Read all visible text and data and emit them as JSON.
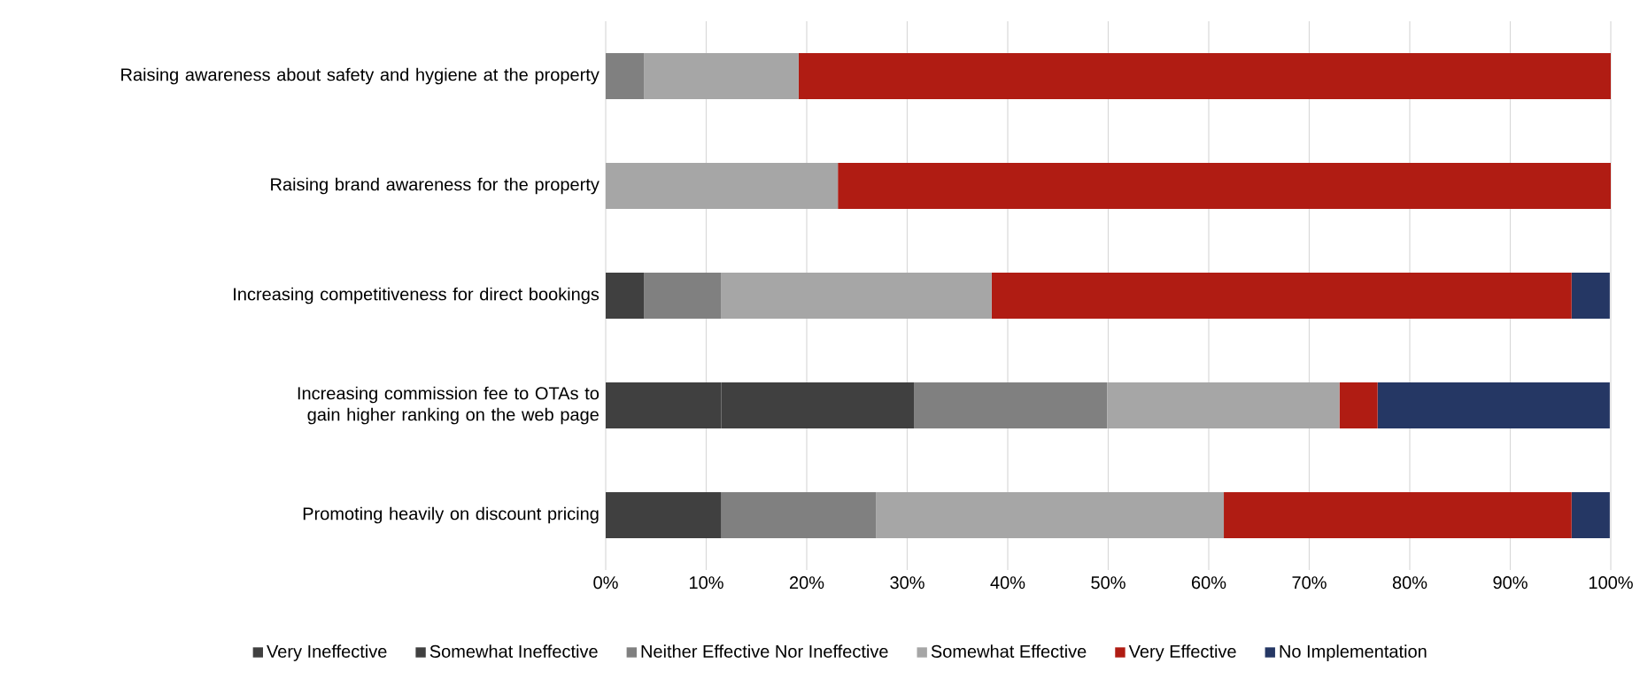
{
  "chart_data": {
    "type": "bar",
    "orientation": "horizontal",
    "stacked": true,
    "categories": [
      "Raising awareness about safety and hygiene at the property",
      "Raising brand awareness for the property",
      "Increasing competitiveness for direct bookings",
      "Increasing commission fee to OTAs to gain higher ranking on the web page",
      "Promoting heavily on discount pricing"
    ],
    "series": [
      {
        "name": "Very Ineffective",
        "color": "#404040",
        "values": [
          0,
          0,
          3.8,
          11.5,
          11.5
        ]
      },
      {
        "name": "Somewhat Ineffective",
        "color": "#404040",
        "values": [
          0,
          0,
          0,
          19.2,
          0
        ]
      },
      {
        "name": "Neither Effective Nor Ineffective",
        "color": "#808080",
        "values": [
          3.8,
          0,
          7.7,
          19.2,
          15.4
        ]
      },
      {
        "name": "Somewhat Effective",
        "color": "#a6a6a6",
        "values": [
          15.4,
          23.1,
          26.9,
          23.1,
          34.6
        ]
      },
      {
        "name": "Very Effective",
        "color": "#b01c13",
        "values": [
          80.8,
          76.9,
          57.7,
          3.8,
          34.6
        ]
      },
      {
        "name": "No Implementation",
        "color": "#253764",
        "values": [
          0,
          0,
          3.8,
          23.1,
          3.8
        ]
      }
    ],
    "xlim": [
      0,
      100
    ],
    "xticks": [
      {
        "value": 0,
        "label": "0%"
      },
      {
        "value": 10,
        "label": "10%"
      },
      {
        "value": 20,
        "label": "20%"
      },
      {
        "value": 30,
        "label": "30%"
      },
      {
        "value": 40,
        "label": "40%"
      },
      {
        "value": 50,
        "label": "50%"
      },
      {
        "value": 60,
        "label": "60%"
      },
      {
        "value": 70,
        "label": "70%"
      },
      {
        "value": 80,
        "label": "80%"
      },
      {
        "value": 90,
        "label": "90%"
      },
      {
        "value": 100,
        "label": "100%"
      }
    ],
    "grid": "x",
    "legend": "bottom"
  }
}
